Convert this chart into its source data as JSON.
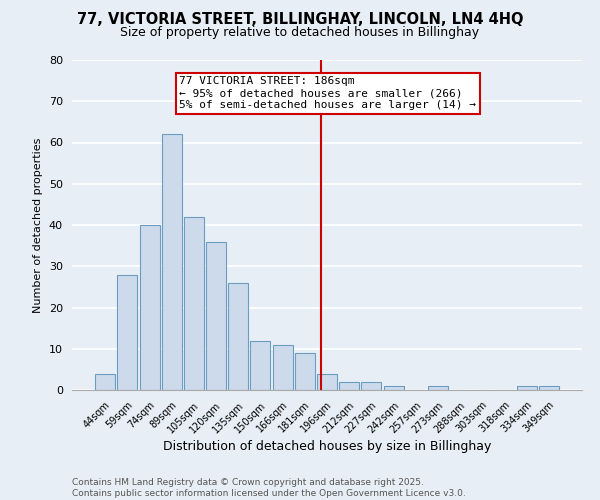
{
  "title1": "77, VICTORIA STREET, BILLINGHAY, LINCOLN, LN4 4HQ",
  "title2": "Size of property relative to detached houses in Billinghay",
  "xlabel": "Distribution of detached houses by size in Billinghay",
  "ylabel": "Number of detached properties",
  "bar_labels": [
    "44sqm",
    "59sqm",
    "74sqm",
    "89sqm",
    "105sqm",
    "120sqm",
    "135sqm",
    "150sqm",
    "166sqm",
    "181sqm",
    "196sqm",
    "212sqm",
    "227sqm",
    "242sqm",
    "257sqm",
    "273sqm",
    "288sqm",
    "303sqm",
    "318sqm",
    "334sqm",
    "349sqm"
  ],
  "bar_values": [
    4,
    28,
    40,
    62,
    42,
    36,
    26,
    12,
    11,
    9,
    4,
    2,
    2,
    1,
    0,
    1,
    0,
    0,
    0,
    1,
    1
  ],
  "bar_color": "#cddaeb",
  "bar_edgecolor": "#6a9dc0",
  "ylim": [
    0,
    80
  ],
  "yticks": [
    0,
    10,
    20,
    30,
    40,
    50,
    60,
    70,
    80
  ],
  "vline_x": 9.73,
  "vline_color": "#cc0000",
  "annotation_title": "77 VICTORIA STREET: 186sqm",
  "annotation_line1": "← 95% of detached houses are smaller (266)",
  "annotation_line2": "5% of semi-detached houses are larger (14) →",
  "annotation_box_edgecolor": "#cc0000",
  "bg_color": "#e8eef5",
  "grid_color": "#ffffff",
  "footer_line1": "Contains HM Land Registry data © Crown copyright and database right 2025.",
  "footer_line2": "Contains public sector information licensed under the Open Government Licence v3.0.",
  "title1_fontsize": 10.5,
  "title2_fontsize": 9,
  "xlabel_fontsize": 9,
  "ylabel_fontsize": 8,
  "annotation_fontsize": 8,
  "footer_fontsize": 6.5
}
